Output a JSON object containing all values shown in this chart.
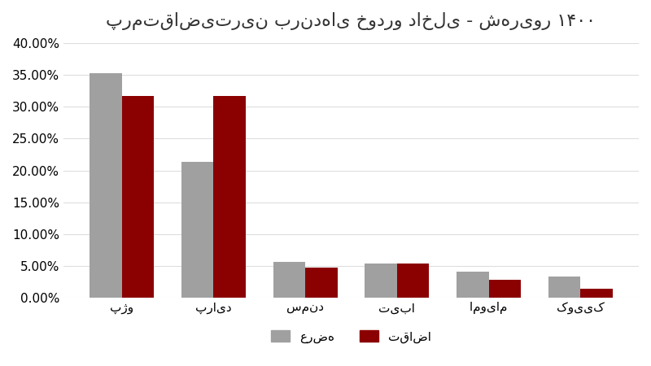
{
  "title": "پرمتقاضی‌ترین برندهای خودرو داخلی - شهریور ۱۴۰۰",
  "categories": [
    "پژو",
    "پراید",
    "سمند",
    "تیبا",
    "اموی‌ام",
    "کوییک"
  ],
  "supply": [
    0.353,
    0.213,
    0.057,
    0.054,
    0.041,
    0.034
  ],
  "demand": [
    0.317,
    0.317,
    0.048,
    0.054,
    0.028,
    0.014
  ],
  "supply_color": "#a0a0a0",
  "demand_color": "#8b0000",
  "background_color": "#ffffff",
  "ylim": [
    0,
    0.4
  ],
  "yticks": [
    0.0,
    0.05,
    0.1,
    0.15,
    0.2,
    0.25,
    0.3,
    0.35,
    0.4
  ],
  "legend_supply": "عرضه",
  "legend_demand": "تقاضا",
  "grid_color": "#dddddd",
  "title_fontsize": 16,
  "tick_fontsize": 11,
  "legend_fontsize": 11
}
